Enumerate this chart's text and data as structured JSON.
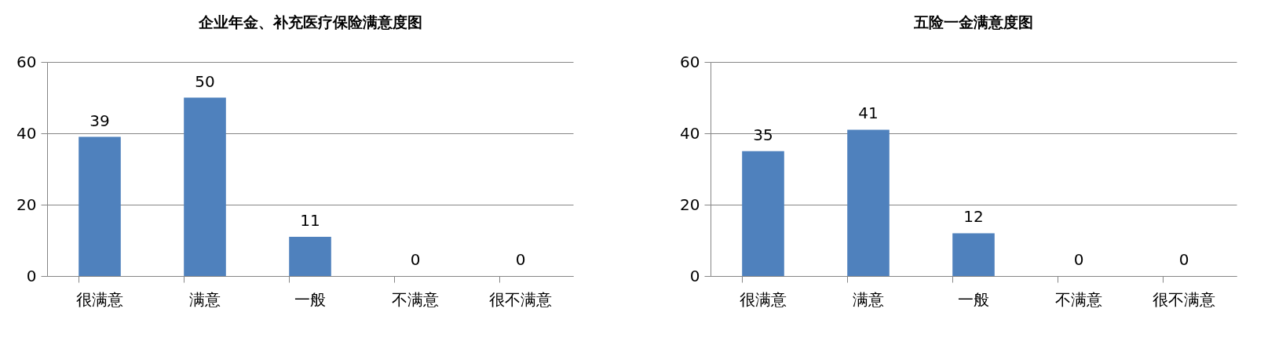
{
  "chart_data": [
    {
      "type": "bar",
      "title": "企业年金、补充医疗保险满意度图",
      "categories": [
        "很满意",
        "满意",
        "一般",
        "不满意",
        "很不满意"
      ],
      "values": [
        39,
        50,
        11,
        0,
        0
      ],
      "color": "#4f81bd",
      "ylim": [
        0,
        60
      ],
      "yticks": [
        0,
        20,
        40,
        60
      ],
      "grid": "y",
      "data_labels": true
    },
    {
      "type": "bar",
      "title": "五险一金满意度图",
      "categories": [
        "很满意",
        "满意",
        "一般",
        "不满意",
        "很不满意"
      ],
      "values": [
        35,
        41,
        12,
        0,
        0
      ],
      "color": "#4f81bd",
      "ylim": [
        0,
        60
      ],
      "yticks": [
        0,
        20,
        40,
        60
      ],
      "grid": "y",
      "data_labels": true
    }
  ]
}
